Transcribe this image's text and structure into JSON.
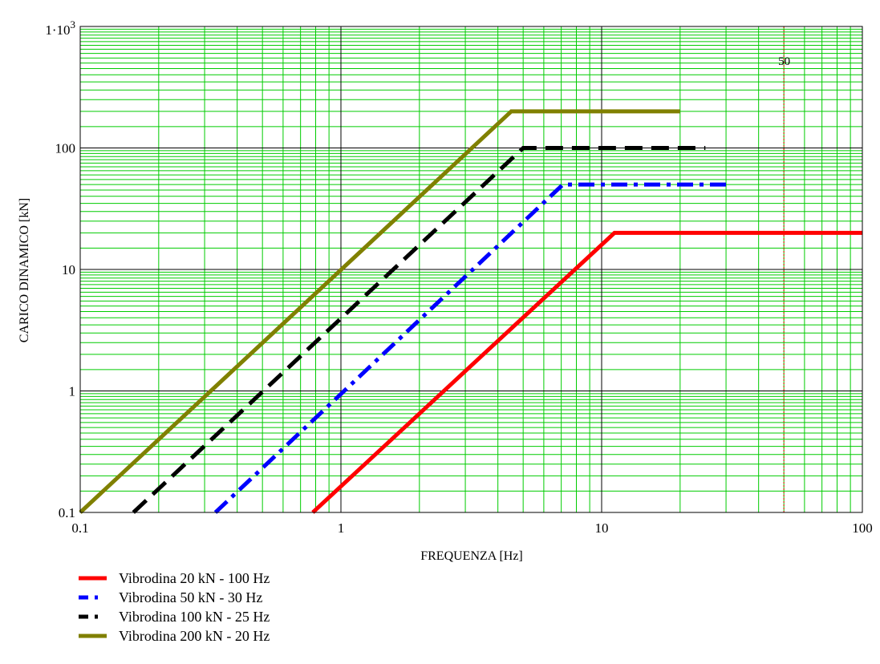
{
  "chart_data": {
    "type": "line",
    "xscale": "log",
    "yscale": "log",
    "xlim": [
      0.1,
      100
    ],
    "ylim": [
      0.1,
      1000
    ],
    "xlabel": "FREQUENZA [Hz]",
    "ylabel": "CARICO DINAMICO [kN]",
    "x_ticks": [
      "0.1",
      "1",
      "10",
      "100"
    ],
    "y_ticks": [
      {
        "value": 0.1,
        "label": "0.1"
      },
      {
        "value": 1,
        "label": "1"
      },
      {
        "value": 10,
        "label": "10"
      },
      {
        "value": 100,
        "label": "100"
      },
      {
        "value": 1000,
        "label": "1·10",
        "sup": "3"
      }
    ],
    "grid": true,
    "grid_color": "#00cc00",
    "major_grid_color": "#000000",
    "legend_placement": "bottom-left",
    "annotation": {
      "x": 50,
      "label": "50",
      "color": "#ff0000"
    },
    "series": [
      {
        "name": "Vibrodina 20 kN - 100 Hz",
        "color": "#ff0000",
        "dash": "solid",
        "x": [
          0.78,
          11.2,
          100
        ],
        "y": [
          0.1,
          20,
          20
        ]
      },
      {
        "name": "Vibrodina 50 kN - 30 Hz",
        "color": "#0000ff",
        "dash": "dashdot",
        "x": [
          0.33,
          7.1,
          30
        ],
        "y": [
          0.1,
          50,
          50
        ]
      },
      {
        "name": "Vibrodina 100 kN - 25 Hz",
        "color": "#000000",
        "dash": "dash",
        "x": [
          0.16,
          5.0,
          25
        ],
        "y": [
          0.1,
          100,
          100
        ]
      },
      {
        "name": "Vibrodina 200 kN - 20 Hz",
        "color": "#808000",
        "dash": "solid",
        "x": [
          0.1,
          4.5,
          20
        ],
        "y": [
          0.1,
          200,
          200
        ]
      }
    ]
  }
}
